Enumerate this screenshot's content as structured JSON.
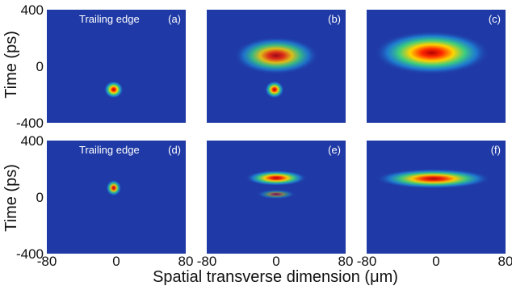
{
  "chart_data": {
    "type": "heatmap",
    "xlabel": "Spatial transverse dimension (μm)",
    "ylabel": "Time (ps)",
    "xlim": [
      -80,
      80
    ],
    "ylim": [
      -400,
      400
    ],
    "x_ticks": [
      "-80",
      "0",
      "80"
    ],
    "y_ticks": [
      "400",
      "0",
      "-400"
    ],
    "background_color": "#1f3aa6",
    "panels": [
      {
        "tag": "(a)",
        "note": "Trailing edge",
        "row": "experiment",
        "blobs": [
          {
            "x": -3,
            "y": -165,
            "sx": 5,
            "sy": 28,
            "peak": 1.0
          }
        ]
      },
      {
        "tag": "(b)",
        "note": "",
        "row": "experiment",
        "blobs": [
          {
            "x": 0,
            "y": 75,
            "sx": 22,
            "sy": 60,
            "peak": 0.85
          },
          {
            "x": -2,
            "y": -165,
            "sx": 5,
            "sy": 28,
            "peak": 0.95
          }
        ]
      },
      {
        "tag": "(c)",
        "note": "",
        "row": "experiment",
        "blobs": [
          {
            "x": -5,
            "y": 95,
            "sx": 30,
            "sy": 70,
            "peak": 1.0
          }
        ]
      },
      {
        "tag": "(d)",
        "note": "Trailing edge",
        "row": "simulation",
        "blobs": [
          {
            "x": -3,
            "y": 65,
            "sx": 4,
            "sy": 26,
            "peak": 0.9
          }
        ]
      },
      {
        "tag": "(e)",
        "note": "",
        "row": "simulation",
        "blobs": [
          {
            "x": 0,
            "y": 135,
            "sx": 16,
            "sy": 25,
            "peak": 0.95
          },
          {
            "x": 0,
            "y": 20,
            "sx": 10,
            "sy": 15,
            "peak": 0.45
          }
        ]
      },
      {
        "tag": "(f)",
        "note": "",
        "row": "simulation",
        "blobs": [
          {
            "x": -3,
            "y": 130,
            "sx": 30,
            "sy": 32,
            "peak": 0.95
          }
        ]
      }
    ]
  }
}
